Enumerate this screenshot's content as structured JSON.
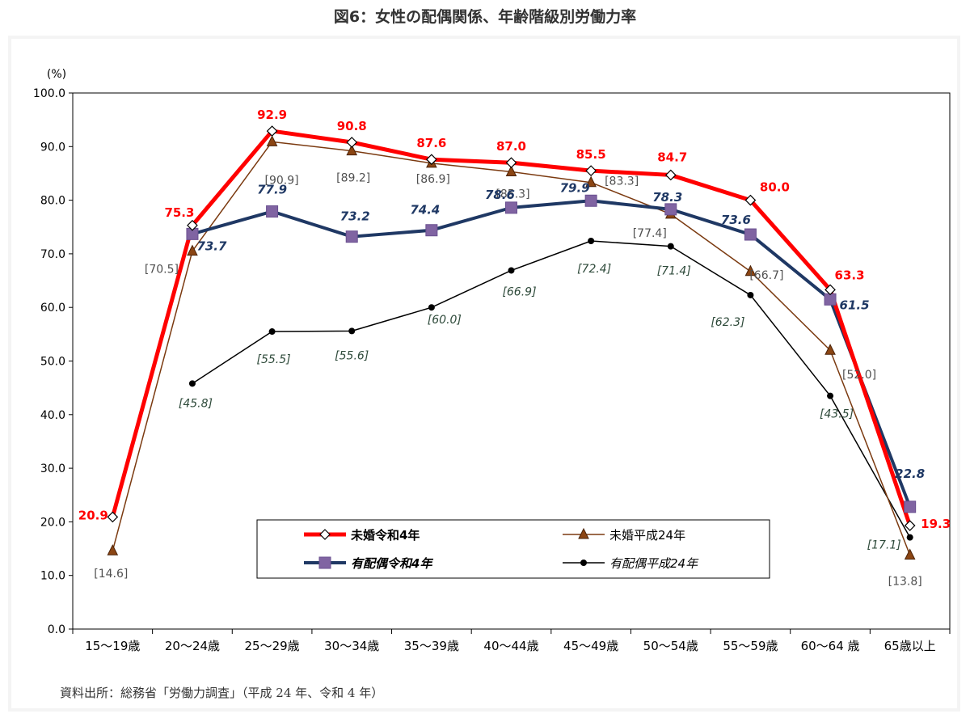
{
  "figure_title": "図6：女性の配偶関係、年齢階級別労働力率",
  "source": "資料出所：総務省「労働力調査」（平成 24 年、令和 4 年）",
  "chart_data": {
    "type": "line",
    "title": "",
    "ylabel": "(%)",
    "xlabel": "",
    "ylim": [
      0,
      100
    ],
    "yticks": [
      "0.0",
      "10.0",
      "20.0",
      "30.0",
      "40.0",
      "50.0",
      "60.0",
      "70.0",
      "80.0",
      "90.0",
      "100.0"
    ],
    "grid": false,
    "legend_position": "bottom-center inside plot",
    "categories": [
      "15～19歳",
      "20～24歳",
      "25～29歳",
      "30～34歳",
      "35～39歳",
      "40～44歳",
      "45～49歳",
      "50～54歳",
      "55～59歳",
      "60～64 歳",
      "65歳以上"
    ],
    "series": [
      {
        "name": "未婚令和4年",
        "color": "#ff0000",
        "marker": "diamond",
        "values": [
          20.9,
          75.3,
          92.9,
          90.8,
          87.6,
          87.0,
          85.5,
          84.7,
          80.0,
          63.3,
          19.3
        ],
        "labels": [
          "20.9",
          "75.3",
          "92.9",
          "90.8",
          "87.6",
          "87.0",
          "85.5",
          "84.7",
          "80.0",
          "63.3",
          "19.3"
        ]
      },
      {
        "name": "未婚平成24年",
        "color": "#7b3a10",
        "marker": "triangle",
        "values": [
          14.6,
          70.5,
          90.9,
          89.2,
          86.9,
          85.3,
          83.3,
          77.4,
          66.7,
          52.0,
          13.8
        ],
        "labels": [
          "[14.6]",
          "[70.5]",
          "[90.9]",
          "[89.2]",
          "[86.9]",
          "[85.3]",
          "[83.3]",
          "[77.4]",
          "[66.7]",
          "[52.0]",
          "[13.8]"
        ]
      },
      {
        "name": "有配偶令和4年",
        "color": "#1f3864",
        "marker": "square",
        "values": [
          null,
          73.7,
          77.9,
          73.2,
          74.4,
          78.6,
          79.9,
          78.3,
          73.6,
          61.5,
          22.8
        ],
        "labels": [
          "",
          "73.7",
          "77.9",
          "73.2",
          "74.4",
          "78.6",
          "79.9",
          "78.3",
          "73.6",
          "61.5",
          "22.8"
        ]
      },
      {
        "name": "有配偶平成24年",
        "color": "#000000",
        "marker": "circle",
        "values": [
          null,
          45.8,
          55.5,
          55.6,
          60.0,
          66.9,
          72.4,
          71.4,
          62.3,
          43.5,
          17.1
        ],
        "labels": [
          "",
          "[45.8]",
          "[55.5]",
          "[55.6]",
          "[60.0]",
          "[66.9]",
          "[72.4]",
          "[71.4]",
          "[62.3]",
          "[43.5]",
          "[17.1]"
        ]
      }
    ],
    "label_colors": {
      "unmarried_2022": "#ff0000",
      "unmarried_2012": "#505050",
      "married_2022": "#1f3864",
      "married_2012": "#2e4a3a"
    }
  }
}
